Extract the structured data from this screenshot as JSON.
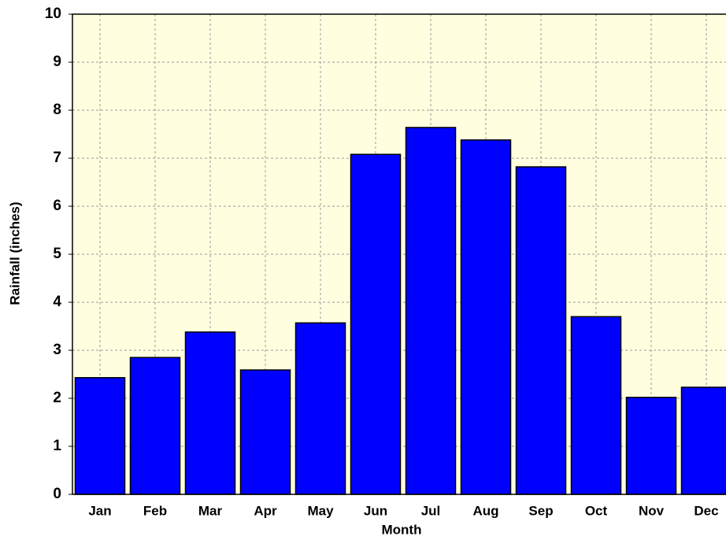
{
  "chart_data": {
    "type": "bar",
    "x_label": "Month",
    "y_label": "Rainfall  (inches)",
    "categories": [
      "Jan",
      "Feb",
      "Mar",
      "Apr",
      "May",
      "Jun",
      "Jul",
      "Aug",
      "Sep",
      "Oct",
      "Nov",
      "Dec"
    ],
    "values": [
      2.43,
      2.85,
      3.38,
      2.59,
      3.57,
      7.08,
      7.64,
      7.38,
      6.82,
      3.7,
      2.02,
      2.23
    ],
    "color": "#0000ff",
    "ylim": [
      0,
      10
    ],
    "yticks": [
      0,
      1,
      2,
      3,
      4,
      5,
      6,
      7,
      8,
      9,
      10
    ],
    "grid": true
  }
}
